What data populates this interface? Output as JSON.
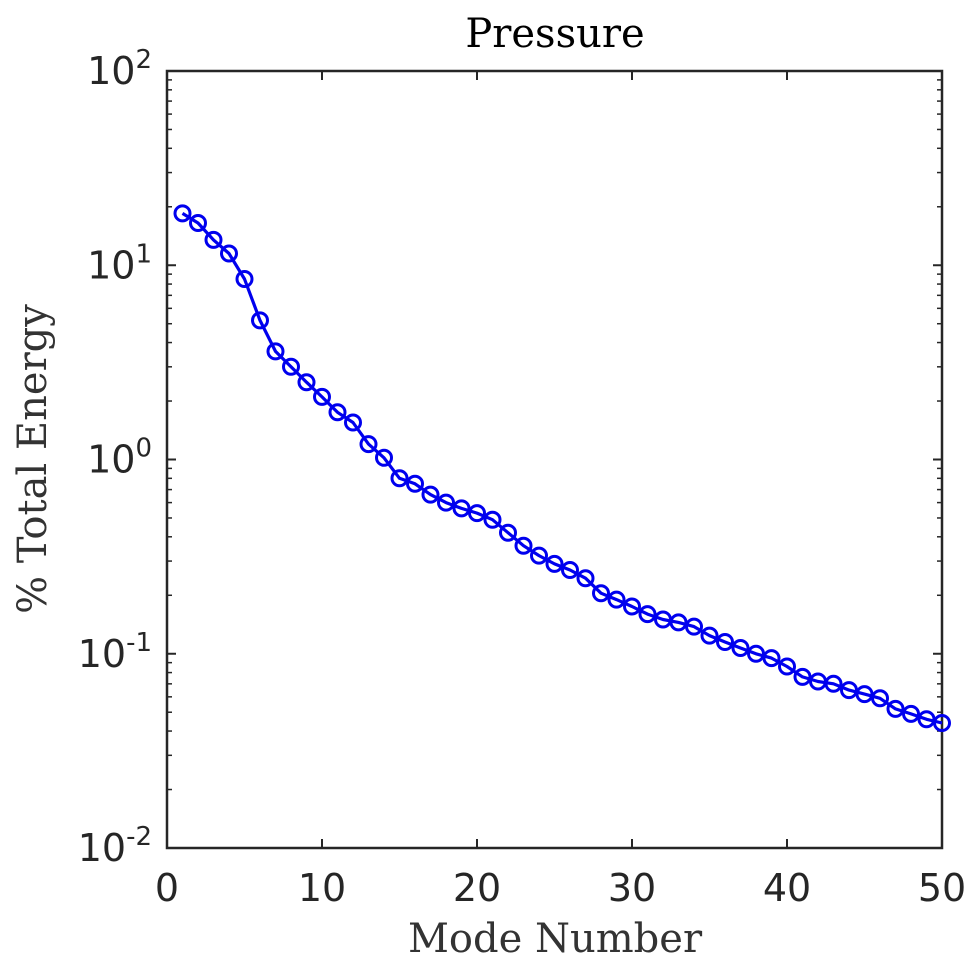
{
  "chart_data": {
    "type": "line",
    "title": "Pressure",
    "xlabel": "Mode Number",
    "ylabel": "% Total Energy",
    "xlim": [
      0,
      50
    ],
    "ylim": [
      0.01,
      100
    ],
    "yscale": "log",
    "grid": false,
    "x_ticks": [
      {
        "value": 0,
        "label": "0"
      },
      {
        "value": 10,
        "label": "10"
      },
      {
        "value": 20,
        "label": "20"
      },
      {
        "value": 30,
        "label": "30"
      },
      {
        "value": 40,
        "label": "40"
      },
      {
        "value": 50,
        "label": "50"
      }
    ],
    "y_ticks": [
      {
        "value": 0.01,
        "base": "10",
        "exp": "-2"
      },
      {
        "value": 0.1,
        "base": "10",
        "exp": "-1"
      },
      {
        "value": 1,
        "base": "10",
        "exp": "0"
      },
      {
        "value": 10,
        "base": "10",
        "exp": "1"
      },
      {
        "value": 100,
        "base": "10",
        "exp": "2"
      }
    ],
    "series": [
      {
        "color": "#0000ee",
        "marker": "circle",
        "x": [
          1,
          2,
          3,
          4,
          5,
          6,
          7,
          8,
          9,
          10,
          11,
          12,
          13,
          14,
          15,
          16,
          17,
          18,
          19,
          20,
          21,
          22,
          23,
          24,
          25,
          26,
          27,
          28,
          29,
          30,
          31,
          32,
          33,
          34,
          35,
          36,
          37,
          38,
          39,
          40,
          41,
          42,
          43,
          44,
          45,
          46,
          47,
          48,
          49,
          50
        ],
        "values": [
          18.5,
          16.5,
          13.5,
          11.5,
          8.5,
          5.2,
          3.6,
          3.0,
          2.5,
          2.1,
          1.75,
          1.55,
          1.2,
          1.02,
          0.8,
          0.75,
          0.66,
          0.6,
          0.56,
          0.53,
          0.49,
          0.42,
          0.36,
          0.32,
          0.29,
          0.27,
          0.245,
          0.205,
          0.19,
          0.175,
          0.16,
          0.15,
          0.145,
          0.138,
          0.124,
          0.115,
          0.107,
          0.1,
          0.095,
          0.086,
          0.076,
          0.072,
          0.07,
          0.065,
          0.062,
          0.059,
          0.052,
          0.049,
          0.046,
          0.044
        ]
      }
    ]
  }
}
